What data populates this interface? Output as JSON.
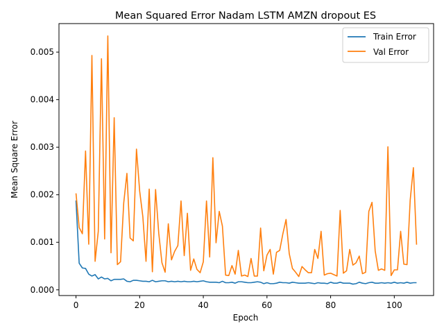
{
  "chart_data": {
    "type": "line",
    "title": "Mean Squared Error  Nadam LSTM AMZN dropout ES",
    "xlabel": "Epoch",
    "ylabel": "Mean Square Error",
    "xlim": [
      -5.35,
      112.35
    ],
    "ylim": [
      -0.00012,
      0.0056
    ],
    "xticks": [
      0,
      20,
      40,
      60,
      80,
      100
    ],
    "xtick_labels": [
      "0",
      "20",
      "40",
      "60",
      "80",
      "100"
    ],
    "yticks": [
      0.0,
      0.001,
      0.002,
      0.003,
      0.004,
      0.005
    ],
    "ytick_labels": [
      "0.000",
      "0.001",
      "0.002",
      "0.003",
      "0.004",
      "0.005"
    ],
    "legend_position": "top-right",
    "grid": false,
    "series": [
      {
        "name": "Train Error",
        "color": "#1f77b4",
        "values": [
          0.00188,
          0.00056,
          0.00046,
          0.00045,
          0.00033,
          0.00029,
          0.00032,
          0.00023,
          0.00027,
          0.00023,
          0.00024,
          0.00019,
          0.00022,
          0.00022,
          0.00022,
          0.00023,
          0.00018,
          0.00017,
          0.0002,
          0.0002,
          0.00019,
          0.00018,
          0.00018,
          0.00017,
          0.0002,
          0.00017,
          0.00018,
          0.00019,
          0.00019,
          0.00017,
          0.00018,
          0.00017,
          0.00018,
          0.00017,
          0.00018,
          0.00017,
          0.00017,
          0.00018,
          0.00017,
          0.00018,
          0.00019,
          0.00017,
          0.00016,
          0.00016,
          0.00016,
          0.00015,
          0.00018,
          0.00015,
          0.00015,
          0.00016,
          0.00014,
          0.00017,
          0.00017,
          0.00016,
          0.00015,
          0.00015,
          0.00016,
          0.00017,
          0.00016,
          0.00013,
          0.00015,
          0.00013,
          0.00013,
          0.00014,
          0.00016,
          0.00015,
          0.00015,
          0.00014,
          0.00016,
          0.00015,
          0.00014,
          0.00014,
          0.00014,
          0.00015,
          0.00014,
          0.00013,
          0.00015,
          0.00014,
          0.00014,
          0.00013,
          0.00016,
          0.00014,
          0.00014,
          0.00016,
          0.00014,
          0.00014,
          0.00014,
          0.00012,
          0.00013,
          0.00016,
          0.00014,
          0.00013,
          0.00015,
          0.00016,
          0.00014,
          0.00014,
          0.00015,
          0.00014,
          0.00015,
          0.00014,
          0.00016,
          0.00014,
          0.00015,
          0.00014,
          0.00016,
          0.00014,
          0.00015,
          0.00015
        ]
      },
      {
        "name": "Val Error",
        "color": "#ff7f0e",
        "values": [
          0.00203,
          0.00131,
          0.00118,
          0.00292,
          0.00096,
          0.00493,
          0.0006,
          0.00123,
          0.00486,
          0.00107,
          0.00534,
          0.00078,
          0.00362,
          0.00053,
          0.00059,
          0.00183,
          0.00245,
          0.00109,
          0.00103,
          0.00296,
          0.00208,
          0.00154,
          0.0006,
          0.00212,
          0.00038,
          0.00211,
          0.00119,
          0.00057,
          0.00037,
          0.00139,
          0.00063,
          0.00081,
          0.00093,
          0.00187,
          0.00072,
          0.00161,
          0.00041,
          0.00065,
          0.00043,
          0.00036,
          0.00059,
          0.00187,
          0.00069,
          0.00278,
          0.00099,
          0.00165,
          0.00134,
          0.00031,
          0.0003,
          0.00051,
          0.00033,
          0.00083,
          0.00029,
          0.00031,
          0.00028,
          0.00066,
          0.00029,
          0.00029,
          0.0013,
          0.0004,
          0.00073,
          0.00085,
          0.00033,
          0.00079,
          0.00083,
          0.00118,
          0.00148,
          0.00076,
          0.00045,
          0.00037,
          0.00028,
          0.00049,
          0.00042,
          0.00036,
          0.00036,
          0.00085,
          0.00066,
          0.00123,
          0.00031,
          0.00034,
          0.00035,
          0.00032,
          0.00029,
          0.00167,
          0.00035,
          0.0004,
          0.00085,
          0.00052,
          0.00057,
          0.00071,
          0.00034,
          0.00037,
          0.00165,
          0.00184,
          0.00082,
          0.00041,
          0.00044,
          0.00041,
          0.00301,
          0.0003,
          0.00042,
          0.00042,
          0.00123,
          0.00054,
          0.00053,
          0.00189,
          0.00257,
          0.00095
        ]
      }
    ]
  }
}
